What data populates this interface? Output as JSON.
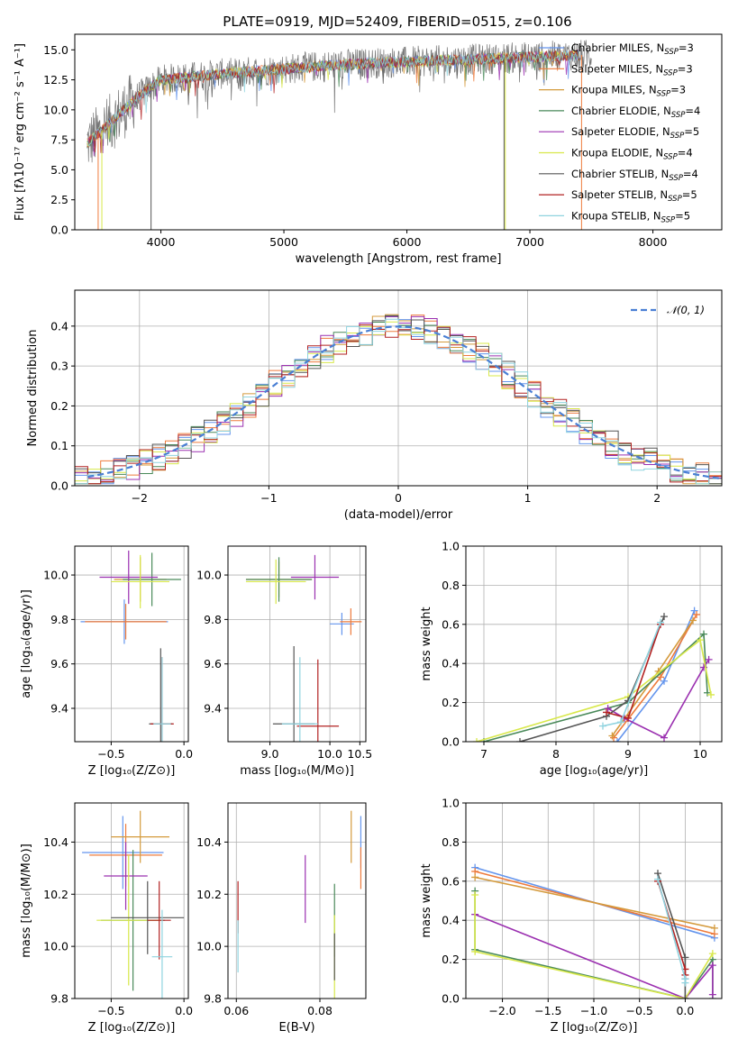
{
  "figure": {
    "title": "PLATE=0919, MJD=52409, FIBERID=0515, z=0.106"
  },
  "models": [
    {
      "label": "Chabrier MILES",
      "nssp": "3",
      "color": "#6495ed"
    },
    {
      "label": "Salpeter MILES",
      "nssp": "3",
      "color": "#ee7b3c"
    },
    {
      "label": "Kroupa MILES",
      "nssp": "3",
      "color": "#d49a3c"
    },
    {
      "label": "Chabrier ELODIE",
      "nssp": "4",
      "color": "#4a8a5a"
    },
    {
      "label": "Salpeter ELODIE",
      "nssp": "5",
      "color": "#9b30b0"
    },
    {
      "label": "Kroupa ELODIE",
      "nssp": "4",
      "color": "#d8e84a"
    },
    {
      "label": "Chabrier STELIB",
      "nssp": "4",
      "color": "#555555"
    },
    {
      "label": "Salpeter STELIB",
      "nssp": "5",
      "color": "#b22222"
    },
    {
      "label": "Kroupa STELIB",
      "nssp": "5",
      "color": "#8fd3df"
    }
  ],
  "chart_data": [
    {
      "id": "spectrum",
      "type": "line",
      "title": "PLATE=0919, MJD=52409, FIBERID=0515, z=0.106",
      "xlabel": "wavelength [Angstrom, rest frame]",
      "ylabel": "Flux [fλ10⁻¹⁷ erg cm⁻² s⁻¹ A⁻¹]",
      "xlim": [
        3300,
        8560
      ],
      "ylim": [
        0,
        16.3
      ],
      "xticks": [
        4000,
        5000,
        6000,
        7000,
        8000
      ],
      "yticks": [
        0.0,
        2.5,
        5.0,
        7.5,
        10.0,
        12.5,
        15.0
      ],
      "grid": false,
      "legend": "right",
      "continuum": {
        "x": [
          3400,
          3600,
          3800,
          4000,
          4500,
          5000,
          5500,
          6000,
          6500,
          7000,
          7500
        ],
        "y": [
          7.2,
          9.0,
          11.0,
          12.5,
          13.0,
          13.4,
          13.8,
          14.0,
          14.2,
          14.4,
          14.6
        ]
      },
      "data_range": [
        3400,
        7500
      ],
      "model_range": [
        3400,
        7400
      ],
      "model_cutoffs": [
        [
          3490,
          7420
        ],
        [
          3520,
          6800
        ],
        [
          3920,
          6790
        ]
      ]
    },
    {
      "id": "residual-histogram",
      "type": "line",
      "xlabel": "(data-model)/error",
      "ylabel": "Normed distribution",
      "xlim": [
        -2.5,
        2.5
      ],
      "ylim": [
        0,
        0.49
      ],
      "xticks": [
        -2,
        -1,
        0,
        1,
        2
      ],
      "yticks": [
        0.0,
        0.1,
        0.2,
        0.3,
        0.4
      ],
      "grid": true,
      "legend": "top-right",
      "reference": {
        "label": "𝒩(0, 1)",
        "mean": 0,
        "sigma": 1,
        "color": "#4a7fd4"
      },
      "bin_width": 0.1
    },
    {
      "id": "age-vs-Z",
      "type": "scatter",
      "xlabel": "Z [log₁₀(Z/Z⊙)]",
      "ylabel": "age  [log₁₀(age/yr)]",
      "xlim": [
        -0.75,
        0.03
      ],
      "ylim": [
        9.25,
        10.13
      ],
      "xticks": [
        -0.5,
        0.0
      ],
      "yticks": [
        9.4,
        9.6,
        9.8,
        10.0
      ],
      "grid": true,
      "points": [
        {
          "m": 0,
          "x": -0.41,
          "y": 9.79,
          "xerr": 0.3,
          "yerr": 0.1
        },
        {
          "m": 1,
          "x": -0.4,
          "y": 9.79,
          "xerr": 0.28,
          "yerr": 0.08
        },
        {
          "m": 2,
          "x": -0.3,
          "y": 9.98,
          "xerr": 0.18,
          "yerr": 0.1
        },
        {
          "m": 3,
          "x": -0.22,
          "y": 9.98,
          "xerr": 0.2,
          "yerr": 0.12
        },
        {
          "m": 4,
          "x": -0.38,
          "y": 9.99,
          "xerr": 0.2,
          "yerr": 0.12
        },
        {
          "m": 5,
          "x": -0.3,
          "y": 9.97,
          "xerr": 0.2,
          "yerr": 0.12
        },
        {
          "m": 6,
          "x": -0.16,
          "y": 9.33,
          "xerr": 0.08,
          "yerr": 0.34
        },
        {
          "m": 7,
          "x": -0.15,
          "y": 9.33,
          "xerr": 0.08,
          "yerr": 0.3
        },
        {
          "m": 8,
          "x": -0.15,
          "y": 9.33,
          "xerr": 0.06,
          "yerr": 0.3
        }
      ]
    },
    {
      "id": "age-vs-mass",
      "type": "scatter",
      "xlabel": "mass [log₁₀(M/M⊙)]",
      "ylabel": "",
      "xlim": [
        8.3,
        10.6
      ],
      "ylim": [
        9.25,
        10.13
      ],
      "xticks": [
        9.0,
        10.0,
        10.5
      ],
      "yticks": [
        9.4,
        9.6,
        9.8,
        10.0
      ],
      "grid": true,
      "points": [
        {
          "m": 0,
          "x": 10.2,
          "y": 9.78,
          "xerr": 0.2,
          "yerr": 0.05
        },
        {
          "m": 1,
          "x": 10.35,
          "y": 9.79,
          "xerr": 0.18,
          "yerr": 0.06
        },
        {
          "m": 2,
          "x": 9.15,
          "y": 9.98,
          "xerr": 0.55,
          "yerr": 0.08
        },
        {
          "m": 3,
          "x": 9.15,
          "y": 9.98,
          "xerr": 0.55,
          "yerr": 0.1
        },
        {
          "m": 4,
          "x": 9.75,
          "y": 9.99,
          "xerr": 0.4,
          "yerr": 0.1
        },
        {
          "m": 5,
          "x": 9.1,
          "y": 9.97,
          "xerr": 0.5,
          "yerr": 0.1
        },
        {
          "m": 6,
          "x": 9.4,
          "y": 9.33,
          "xerr": 0.35,
          "yerr": 0.35
        },
        {
          "m": 7,
          "x": 9.8,
          "y": 9.32,
          "xerr": 0.35,
          "yerr": 0.3
        },
        {
          "m": 8,
          "x": 9.5,
          "y": 9.33,
          "xerr": 0.3,
          "yerr": 0.3
        }
      ]
    },
    {
      "id": "massweight-vs-age",
      "type": "line",
      "xlabel": "age  [log₁₀(age/yr)]",
      "ylabel": "mass weight",
      "xlim": [
        6.75,
        10.3
      ],
      "ylim": [
        0,
        1.0
      ],
      "xticks": [
        7,
        8,
        9,
        10
      ],
      "yticks": [
        0.0,
        0.2,
        0.4,
        0.6,
        0.8,
        1.0
      ],
      "grid": true,
      "series": [
        {
          "m": 0,
          "x": [
            8.85,
            9.5,
            9.92
          ],
          "y": [
            0.0,
            0.31,
            0.67
          ]
        },
        {
          "m": 1,
          "x": [
            8.8,
            9.45,
            9.95
          ],
          "y": [
            0.02,
            0.33,
            0.65
          ]
        },
        {
          "m": 2,
          "x": [
            8.78,
            9.42,
            9.9
          ],
          "y": [
            0.03,
            0.36,
            0.62
          ]
        },
        {
          "m": 3,
          "x": [
            7.0,
            9.0,
            10.05,
            10.1
          ],
          "y": [
            0.0,
            0.2,
            0.55,
            0.25
          ]
        },
        {
          "m": 4,
          "x": [
            8.72,
            8.95,
            9.5,
            10.05,
            10.12
          ],
          "y": [
            0.17,
            0.12,
            0.02,
            0.38,
            0.42
          ]
        },
        {
          "m": 5,
          "x": [
            6.9,
            9.0,
            10.0,
            10.15
          ],
          "y": [
            0.0,
            0.23,
            0.52,
            0.24
          ]
        },
        {
          "m": 6,
          "x": [
            7.5,
            8.7,
            9.0,
            9.5
          ],
          "y": [
            0.0,
            0.13,
            0.21,
            0.64
          ]
        },
        {
          "m": 7,
          "x": [
            8.7,
            9.0,
            9.45
          ],
          "y": [
            0.15,
            0.12,
            0.6
          ]
        },
        {
          "m": 8,
          "x": [
            8.65,
            8.9,
            9.45
          ],
          "y": [
            0.08,
            0.1,
            0.61
          ]
        }
      ]
    },
    {
      "id": "mass-vs-Z",
      "type": "scatter",
      "xlabel": "Z [log₁₀(Z/Z⊙)]",
      "ylabel": "mass [log₁₀(M/M⊙)]",
      "xlim": [
        -0.75,
        0.03
      ],
      "ylim": [
        9.8,
        10.55
      ],
      "xticks": [
        -0.5,
        0.0
      ],
      "yticks": [
        9.8,
        10.0,
        10.2,
        10.4
      ],
      "grid": true,
      "points": [
        {
          "m": 0,
          "x": -0.42,
          "y": 10.36,
          "xerr": 0.28,
          "yerr": 0.14
        },
        {
          "m": 1,
          "x": -0.4,
          "y": 10.35,
          "xerr": 0.25,
          "yerr": 0.12
        },
        {
          "m": 2,
          "x": -0.3,
          "y": 10.42,
          "xerr": 0.2,
          "yerr": 0.1
        },
        {
          "m": 3,
          "x": -0.35,
          "y": 10.1,
          "xerr": 0.22,
          "yerr": 0.27
        },
        {
          "m": 4,
          "x": -0.4,
          "y": 10.27,
          "xerr": 0.15,
          "yerr": 0.13
        },
        {
          "m": 5,
          "x": -0.38,
          "y": 10.1,
          "xerr": 0.22,
          "yerr": 0.25
        },
        {
          "m": 6,
          "x": -0.25,
          "y": 10.11,
          "xerr": 0.25,
          "yerr": 0.14
        },
        {
          "m": 7,
          "x": -0.17,
          "y": 10.1,
          "xerr": 0.08,
          "yerr": 0.15
        },
        {
          "m": 8,
          "x": -0.15,
          "y": 9.96,
          "xerr": 0.07,
          "yerr": 0.18
        }
      ]
    },
    {
      "id": "mass-vs-EBV",
      "type": "scatter",
      "xlabel": "E(B-V)",
      "ylabel": "",
      "xlim": [
        0.058,
        0.091
      ],
      "ylim": [
        9.8,
        10.55
      ],
      "xticks": [
        0.06,
        0.08
      ],
      "yticks": [
        9.8,
        10.0,
        10.2,
        10.4
      ],
      "grid": true,
      "points": [
        {
          "m": 0,
          "x": 0.0898,
          "y": 10.4,
          "yerr": 0.1
        },
        {
          "m": 1,
          "x": 0.0898,
          "y": 10.3,
          "yerr": 0.08
        },
        {
          "m": 2,
          "x": 0.0875,
          "y": 10.42,
          "yerr": 0.1
        },
        {
          "m": 3,
          "x": 0.0835,
          "y": 10.1,
          "yerr": 0.14
        },
        {
          "m": 4,
          "x": 0.0765,
          "y": 10.22,
          "yerr": 0.13
        },
        {
          "m": 5,
          "x": 0.0835,
          "y": 9.96,
          "yerr": 0.16
        },
        {
          "m": 6,
          "x": 0.0835,
          "y": 9.96,
          "yerr": 0.09
        },
        {
          "m": 7,
          "x": 0.0604,
          "y": 10.15,
          "yerr": 0.1
        },
        {
          "m": 8,
          "x": 0.0604,
          "y": 10.0,
          "yerr": 0.1
        }
      ]
    },
    {
      "id": "massweight-vs-Z",
      "type": "line",
      "xlabel": "Z [log₁₀(Z/Z⊙)]",
      "ylabel": "mass weight",
      "xlim": [
        -2.4,
        0.4
      ],
      "ylim": [
        0,
        1.0
      ],
      "xticks": [
        -2.0,
        -1.5,
        -1.0,
        -0.5,
        0.0
      ],
      "yticks": [
        0.0,
        0.2,
        0.4,
        0.6,
        0.8,
        1.0
      ],
      "grid": true,
      "series": [
        {
          "m": 0,
          "x": [
            -2.3,
            0.32
          ],
          "y": [
            0.67,
            0.31
          ]
        },
        {
          "m": 1,
          "x": [
            -2.3,
            0.32
          ],
          "y": [
            0.65,
            0.33
          ]
        },
        {
          "m": 2,
          "x": [
            -2.3,
            0.32
          ],
          "y": [
            0.62,
            0.36
          ]
        },
        {
          "m": 3,
          "x": [
            -2.3,
            -2.3,
            0.0,
            0.3,
            0.3
          ],
          "y": [
            0.55,
            0.25,
            0.0,
            0.2,
            0.0
          ]
        },
        {
          "m": 4,
          "x": [
            -2.3,
            0.0,
            0.3,
            0.3
          ],
          "y": [
            0.43,
            0.0,
            0.17,
            0.02
          ]
        },
        {
          "m": 5,
          "x": [
            -2.3,
            -2.3,
            0.0,
            0.3
          ],
          "y": [
            0.53,
            0.24,
            0.0,
            0.23
          ]
        },
        {
          "m": 6,
          "x": [
            -0.3,
            0.0,
            0.0,
            0.0
          ],
          "y": [
            0.64,
            0.21,
            0.1,
            0.0
          ]
        },
        {
          "m": 7,
          "x": [
            -0.3,
            0.0,
            0.0
          ],
          "y": [
            0.6,
            0.15,
            0.12
          ]
        },
        {
          "m": 8,
          "x": [
            -0.3,
            0.0,
            0.0
          ],
          "y": [
            0.61,
            0.1,
            0.08
          ]
        }
      ]
    }
  ]
}
